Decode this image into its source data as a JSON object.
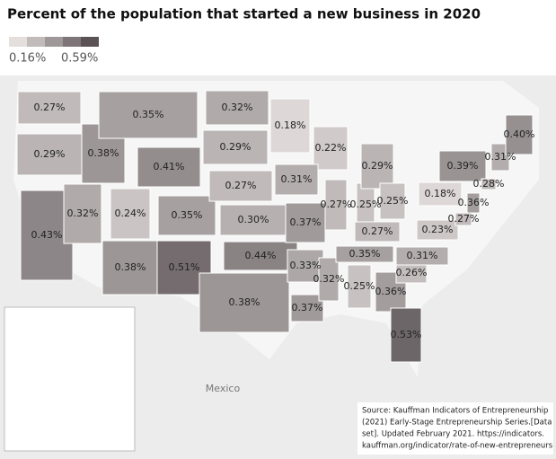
{
  "map": {
    "title": "Percent of the population that started a new business in 2020",
    "legend": {
      "min": 0.16,
      "max": 0.59,
      "min_label": "0.16%",
      "max_label": "0.59%",
      "color_range": [
        "#e4dedd",
        "#5a5255"
      ],
      "steps": 5
    },
    "regions": [
      {
        "value": 0.27,
        "label": "0.27%"
      },
      {
        "value": 0.29,
        "label": "0.29%"
      },
      {
        "value": 0.43,
        "label": "0.43%"
      },
      {
        "value": 0.32,
        "label": "0.32%"
      },
      {
        "value": 0.38,
        "label": "0.38%"
      },
      {
        "value": 0.35,
        "label": "0.35%"
      },
      {
        "value": 0.41,
        "label": "0.41%"
      },
      {
        "value": 0.24,
        "label": "0.24%"
      },
      {
        "value": 0.35,
        "label": "0.35%"
      },
      {
        "value": 0.38,
        "label": "0.38%"
      },
      {
        "value": 0.51,
        "label": "0.51%"
      },
      {
        "value": 0.32,
        "label": "0.32%"
      },
      {
        "value": 0.29,
        "label": "0.29%"
      },
      {
        "value": 0.27,
        "label": "0.27%"
      },
      {
        "value": 0.3,
        "label": "0.30%"
      },
      {
        "value": 0.44,
        "label": "0.44%"
      },
      {
        "value": 0.38,
        "label": "0.38%"
      },
      {
        "value": 0.18,
        "label": "0.18%"
      },
      {
        "value": 0.22,
        "label": "0.22%"
      },
      {
        "value": 0.31,
        "label": "0.31%"
      },
      {
        "value": 0.37,
        "label": "0.37%"
      },
      {
        "value": 0.33,
        "label": "0.33%"
      },
      {
        "value": 0.37,
        "label": "0.37%"
      },
      {
        "value": 0.32,
        "label": "0.32%"
      },
      {
        "value": 0.25,
        "label": "0.25%"
      },
      {
        "value": 0.36,
        "label": "0.36%"
      },
      {
        "value": 0.53,
        "label": "0.53%"
      },
      {
        "value": 0.27,
        "label": "0.27%"
      },
      {
        "value": 0.25,
        "label": "0.25%"
      },
      {
        "value": 0.29,
        "label": "0.29%"
      },
      {
        "value": 0.25,
        "label": "0.25%"
      },
      {
        "value": 0.27,
        "label": "0.27%"
      },
      {
        "value": 0.35,
        "label": "0.35%"
      },
      {
        "value": 0.26,
        "label": "0.26%"
      },
      {
        "value": 0.31,
        "label": "0.31%"
      },
      {
        "value": 0.23,
        "label": "0.23%"
      },
      {
        "value": 0.18,
        "label": "0.18%"
      },
      {
        "value": 0.39,
        "label": "0.39%"
      },
      {
        "value": 0.36,
        "label": "0.36%"
      },
      {
        "value": 0.27,
        "label": "0.27%"
      },
      {
        "value": 0.28,
        "label": "0.28%"
      },
      {
        "value": 0.31,
        "label": "0.31%"
      },
      {
        "value": 0.4,
        "label": "0.40%"
      }
    ],
    "place_labels": [
      "Mexico"
    ],
    "source": [
      "Source: Kauffman Indicators of Entrepreneurship",
      "(2021) Early-Stage Entrepreneurship Series.[Data",
      "set]. Updated February 2021. https://indicators.",
      "kauffman.org/indicator/rate-of-new-entrepreneurs"
    ]
  }
}
